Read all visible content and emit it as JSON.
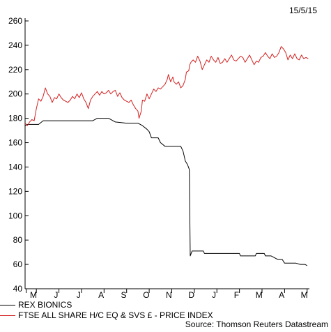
{
  "header": {
    "date": "15/5/15"
  },
  "chart_data": {
    "type": "line",
    "title": "",
    "xlabel": "",
    "ylabel": "",
    "ylim": [
      40,
      260
    ],
    "yticks": [
      40,
      60,
      80,
      100,
      120,
      140,
      160,
      180,
      200,
      220,
      240,
      260
    ],
    "x_months": [
      "M",
      "J",
      "J",
      "A",
      "S",
      "O",
      "N",
      "D",
      "J",
      "F",
      "M",
      "A",
      "M"
    ],
    "x_range": [
      0,
      12.6
    ],
    "grid": false,
    "legend_position": "bottom-left",
    "series": [
      {
        "name": "REX BIONICS",
        "color": "#000000",
        "points": [
          [
            0.0,
            174
          ],
          [
            0.1,
            175
          ],
          [
            0.6,
            175
          ],
          [
            0.8,
            178
          ],
          [
            1.0,
            178
          ],
          [
            2.0,
            178
          ],
          [
            3.0,
            178
          ],
          [
            3.2,
            180
          ],
          [
            3.7,
            180
          ],
          [
            4.0,
            177
          ],
          [
            4.5,
            176
          ],
          [
            5.0,
            176
          ],
          [
            5.2,
            174
          ],
          [
            5.4,
            171
          ],
          [
            5.5,
            169
          ],
          [
            5.6,
            164
          ],
          [
            5.9,
            164
          ],
          [
            6.0,
            160
          ],
          [
            6.2,
            157
          ],
          [
            6.4,
            157
          ],
          [
            6.9,
            157
          ],
          [
            7.0,
            153
          ],
          [
            7.1,
            145
          ],
          [
            7.2,
            142
          ],
          [
            7.28,
            138
          ],
          [
            7.32,
            67
          ],
          [
            7.4,
            71
          ],
          [
            7.9,
            71
          ],
          [
            7.95,
            69
          ],
          [
            8.5,
            69
          ],
          [
            9.0,
            69
          ],
          [
            9.5,
            69
          ],
          [
            9.55,
            67
          ],
          [
            10.0,
            67
          ],
          [
            10.2,
            67
          ],
          [
            10.25,
            69
          ],
          [
            10.6,
            69
          ],
          [
            10.65,
            67
          ],
          [
            10.9,
            67
          ],
          [
            11.0,
            66
          ],
          [
            11.2,
            64
          ],
          [
            11.4,
            64
          ],
          [
            11.5,
            61
          ],
          [
            12.0,
            61
          ],
          [
            12.2,
            60
          ],
          [
            12.4,
            60
          ],
          [
            12.5,
            59
          ]
        ]
      },
      {
        "name": "FTSE ALL SHARE H/C EQ & SVS £ - PRICE INDEX",
        "color": "#d42020",
        "points": [
          [
            0.0,
            176
          ],
          [
            0.1,
            174
          ],
          [
            0.2,
            177
          ],
          [
            0.3,
            179
          ],
          [
            0.4,
            178
          ],
          [
            0.5,
            188
          ],
          [
            0.6,
            196
          ],
          [
            0.7,
            194
          ],
          [
            0.8,
            198
          ],
          [
            0.9,
            205
          ],
          [
            1.0,
            200
          ],
          [
            1.1,
            198
          ],
          [
            1.2,
            193
          ],
          [
            1.3,
            197
          ],
          [
            1.4,
            196
          ],
          [
            1.5,
            200
          ],
          [
            1.6,
            197
          ],
          [
            1.7,
            195
          ],
          [
            1.8,
            194
          ],
          [
            1.9,
            193
          ],
          [
            2.0,
            195
          ],
          [
            2.1,
            198
          ],
          [
            2.2,
            196
          ],
          [
            2.3,
            200
          ],
          [
            2.4,
            197
          ],
          [
            2.5,
            201
          ],
          [
            2.6,
            196
          ],
          [
            2.7,
            193
          ],
          [
            2.8,
            188
          ],
          [
            2.9,
            195
          ],
          [
            3.0,
            198
          ],
          [
            3.1,
            200
          ],
          [
            3.2,
            202
          ],
          [
            3.3,
            199
          ],
          [
            3.4,
            202
          ],
          [
            3.5,
            200
          ],
          [
            3.6,
            201
          ],
          [
            3.7,
            203
          ],
          [
            3.8,
            200
          ],
          [
            3.9,
            202
          ],
          [
            4.0,
            203
          ],
          [
            4.1,
            198
          ],
          [
            4.2,
            201
          ],
          [
            4.3,
            197
          ],
          [
            4.4,
            195
          ],
          [
            4.5,
            194
          ],
          [
            4.6,
            193
          ],
          [
            4.7,
            195
          ],
          [
            4.8,
            191
          ],
          [
            4.9,
            188
          ],
          [
            5.0,
            186
          ],
          [
            5.05,
            180
          ],
          [
            5.15,
            186
          ],
          [
            5.2,
            195
          ],
          [
            5.3,
            194
          ],
          [
            5.4,
            200
          ],
          [
            5.5,
            196
          ],
          [
            5.6,
            200
          ],
          [
            5.7,
            204
          ],
          [
            5.8,
            202
          ],
          [
            5.9,
            205
          ],
          [
            6.0,
            204
          ],
          [
            6.1,
            206
          ],
          [
            6.2,
            208
          ],
          [
            6.3,
            212
          ],
          [
            6.35,
            216
          ],
          [
            6.45,
            210
          ],
          [
            6.55,
            214
          ],
          [
            6.6,
            210
          ],
          [
            6.7,
            208
          ],
          [
            6.8,
            210
          ],
          [
            6.9,
            205
          ],
          [
            7.0,
            207
          ],
          [
            7.1,
            212
          ],
          [
            7.15,
            218
          ],
          [
            7.25,
            219
          ],
          [
            7.3,
            224
          ],
          [
            7.35,
            226
          ],
          [
            7.45,
            228
          ],
          [
            7.55,
            226
          ],
          [
            7.65,
            231
          ],
          [
            7.75,
            227
          ],
          [
            7.85,
            220
          ],
          [
            7.95,
            224
          ],
          [
            8.05,
            228
          ],
          [
            8.15,
            226
          ],
          [
            8.25,
            231
          ],
          [
            8.35,
            228
          ],
          [
            8.45,
            226
          ],
          [
            8.55,
            230
          ],
          [
            8.65,
            225
          ],
          [
            8.75,
            226
          ],
          [
            8.85,
            229
          ],
          [
            8.95,
            226
          ],
          [
            9.05,
            229
          ],
          [
            9.15,
            232
          ],
          [
            9.25,
            228
          ],
          [
            9.35,
            227
          ],
          [
            9.45,
            229
          ],
          [
            9.55,
            231
          ],
          [
            9.65,
            230
          ],
          [
            9.75,
            226
          ],
          [
            9.85,
            229
          ],
          [
            9.95,
            232
          ],
          [
            10.05,
            228
          ],
          [
            10.15,
            224
          ],
          [
            10.25,
            227
          ],
          [
            10.35,
            226
          ],
          [
            10.45,
            230
          ],
          [
            10.55,
            231
          ],
          [
            10.65,
            234
          ],
          [
            10.75,
            231
          ],
          [
            10.85,
            229
          ],
          [
            10.95,
            233
          ],
          [
            11.05,
            230
          ],
          [
            11.15,
            231
          ],
          [
            11.25,
            234
          ],
          [
            11.35,
            239
          ],
          [
            11.45,
            237
          ],
          [
            11.55,
            234
          ],
          [
            11.65,
            228
          ],
          [
            11.75,
            232
          ],
          [
            11.85,
            229
          ],
          [
            11.95,
            233
          ],
          [
            12.05,
            229
          ],
          [
            12.15,
            228
          ],
          [
            12.25,
            232
          ],
          [
            12.35,
            229
          ],
          [
            12.45,
            230
          ],
          [
            12.55,
            229
          ]
        ]
      }
    ]
  },
  "source": "Source: Thomson Reuters Datastream"
}
